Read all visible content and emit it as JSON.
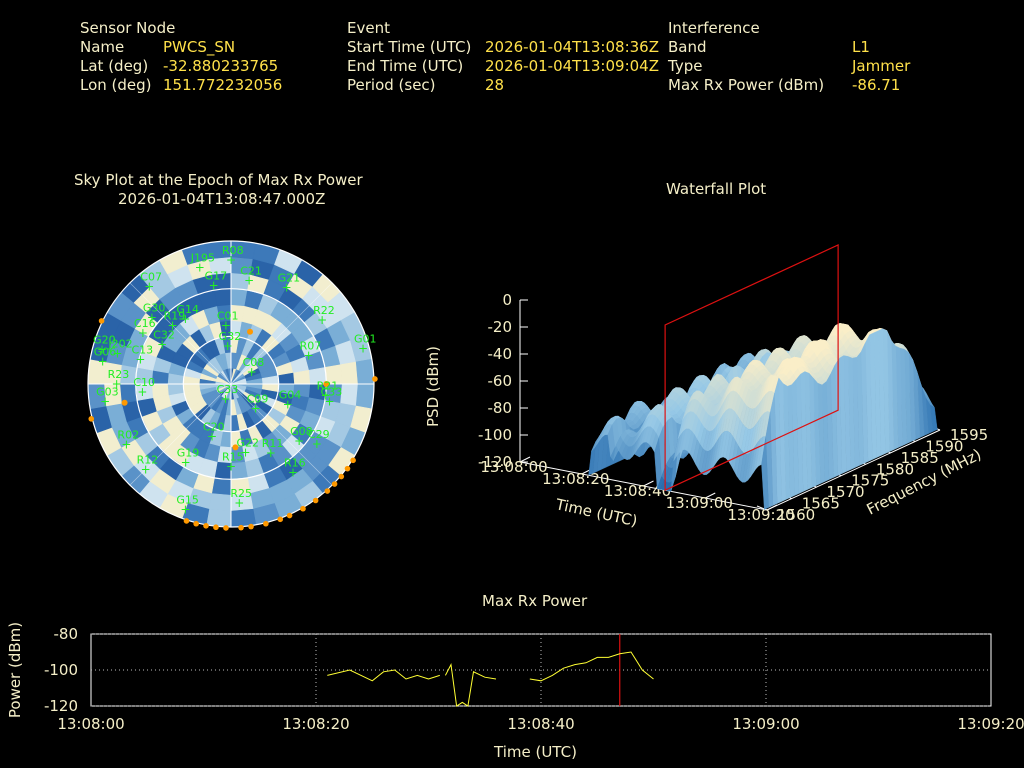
{
  "header": {
    "sensor": {
      "heading": "Sensor Node",
      "name_label": "Name",
      "name_value": "PWCS_SN",
      "lat_label": "Lat (deg)",
      "lat_value": "-32.880233765",
      "lon_label": "Lon (deg)",
      "lon_value": "151.772232056"
    },
    "event": {
      "heading": "Event",
      "start_label": "Start Time (UTC)",
      "start_value": "2026-01-04T13:08:36Z",
      "end_label": "End Time (UTC)",
      "end_value": "2026-01-04T13:09:04Z",
      "period_label": "Period (sec)",
      "period_value": "28"
    },
    "interference": {
      "heading": "Interference",
      "band_label": "Band",
      "band_value": "L1",
      "type_label": "Type",
      "type_value": "Jammer",
      "power_label": "Max Rx Power (dBm)",
      "power_value": "-86.71"
    }
  },
  "colors": {
    "label": "#f5efc8",
    "value": "#ffe14a",
    "satellite": "#22ee22",
    "marker": "#ff9900",
    "cursor": "#dd1111",
    "trace": "#ffff33"
  },
  "chart_data": [
    {
      "type": "scatter",
      "title": "Sky Plot at the Epoch of Max Rx Power",
      "subtitle": "2026-01-04T13:08:47.000Z",
      "projection": "polar azimuth/elevation",
      "satellites": [
        {
          "id": "J195",
          "az": 345,
          "el": 14
        },
        {
          "id": "R08",
          "az": 0,
          "el": 12
        },
        {
          "id": "C21",
          "az": 10,
          "el": 24
        },
        {
          "id": "C07",
          "az": 320,
          "el": 10
        },
        {
          "id": "G17",
          "az": 350,
          "el": 27
        },
        {
          "id": "R22",
          "az": 55,
          "el": 20
        },
        {
          "id": "G21",
          "az": 30,
          "el": 20
        },
        {
          "id": "G01",
          "az": 75,
          "el": 4
        },
        {
          "id": "G30",
          "az": 310,
          "el": 25
        },
        {
          "id": "C16",
          "az": 300,
          "el": 26
        },
        {
          "id": "R19",
          "az": 315,
          "el": 38
        },
        {
          "id": "G14",
          "az": 325,
          "el": 40
        },
        {
          "id": "C01",
          "az": 355,
          "el": 53
        },
        {
          "id": "R07",
          "az": 70,
          "el": 38
        },
        {
          "id": "G20",
          "az": 285,
          "el": 6
        },
        {
          "id": "J202",
          "az": 285,
          "el": 16
        },
        {
          "id": "C32",
          "az": 300,
          "el": 40
        },
        {
          "id": "G06",
          "az": 280,
          "el": 8
        },
        {
          "id": "C13",
          "az": 285,
          "el": 31
        },
        {
          "id": "R23",
          "az": 270,
          "el": 18
        },
        {
          "id": "C10",
          "az": 265,
          "el": 34
        },
        {
          "id": "G03",
          "az": 262,
          "el": 10
        },
        {
          "id": "G19",
          "az": 210,
          "el": 33
        },
        {
          "id": "C20",
          "az": 200,
          "el": 55
        },
        {
          "id": "R02",
          "az": 240,
          "el": 14
        },
        {
          "id": "R12",
          "az": 225,
          "el": 14
        },
        {
          "id": "G15",
          "az": 200,
          "el": 6
        },
        {
          "id": "R15",
          "az": 180,
          "el": 38
        },
        {
          "id": "G22",
          "az": 168,
          "el": 46
        },
        {
          "id": "R25",
          "az": 176,
          "el": 15
        },
        {
          "id": "R16",
          "az": 145,
          "el": 22
        },
        {
          "id": "R11",
          "az": 150,
          "el": 40
        },
        {
          "id": "G08",
          "az": 130,
          "el": 34
        },
        {
          "id": "C29",
          "az": 125,
          "el": 24
        },
        {
          "id": "C33",
          "az": 100,
          "el": 27
        },
        {
          "id": "G04",
          "az": 110,
          "el": 52
        },
        {
          "id": "R21",
          "az": 97,
          "el": 30
        },
        {
          "id": "C09",
          "az": 135,
          "el": 68
        },
        {
          "id": "C33",
          "az": 200,
          "el": 80
        },
        {
          "id": "C08",
          "az": 60,
          "el": 75
        },
        {
          "id": "G32",
          "az": 355,
          "el": 66
        }
      ]
    },
    {
      "type": "area",
      "title": "Waterfall Plot",
      "xlabel": "Time (UTC)",
      "ylabel": "Frequency (MHz)",
      "zlabel": "PSD (dBm)",
      "x_ticks": [
        "13:08:00",
        "13:08:20",
        "13:08:40",
        "13:09:00",
        "13:09:20"
      ],
      "y_ticks": [
        "1560",
        "1565",
        "1570",
        "1575",
        "1580",
        "1585",
        "1590",
        "1595"
      ],
      "z_ticks": [
        "0",
        "-20",
        "-40",
        "-60",
        "-80",
        "-100",
        "-120"
      ],
      "zlim": [
        -120,
        0
      ],
      "cursor_time": "13:08:47"
    },
    {
      "type": "line",
      "title": "Max Rx Power",
      "xlabel": "Time (UTC)",
      "ylabel": "Power (dBm)",
      "x_ticks": [
        "13:08:00",
        "13:08:20",
        "13:08:40",
        "13:09:00",
        "13:09:20"
      ],
      "y_ticks": [
        "-80",
        "-100",
        "-120"
      ],
      "xlim": [
        0,
        80
      ],
      "ylim": [
        -120,
        -80
      ],
      "grid": true,
      "cursor_time": "13:08:47",
      "segments": [
        {
          "x": [
            21,
            23,
            25,
            26,
            27,
            28,
            29,
            30,
            31
          ],
          "y": [
            -103,
            -100,
            -106,
            -101,
            -100,
            -105,
            -103,
            -105,
            -103
          ]
        },
        {
          "x": [
            31.5,
            32,
            32.5,
            33,
            33.5,
            34,
            35,
            36
          ],
          "y": [
            -103,
            -97,
            -120,
            -118,
            -120,
            -101,
            -104,
            -105
          ]
        },
        {
          "x": [
            39,
            40,
            41,
            42,
            43,
            44,
            45,
            46,
            47,
            48,
            49,
            50
          ],
          "y": [
            -105,
            -106,
            -103,
            -99,
            -97,
            -96,
            -93,
            -93,
            -91,
            -90,
            -100,
            -105
          ]
        }
      ]
    }
  ]
}
